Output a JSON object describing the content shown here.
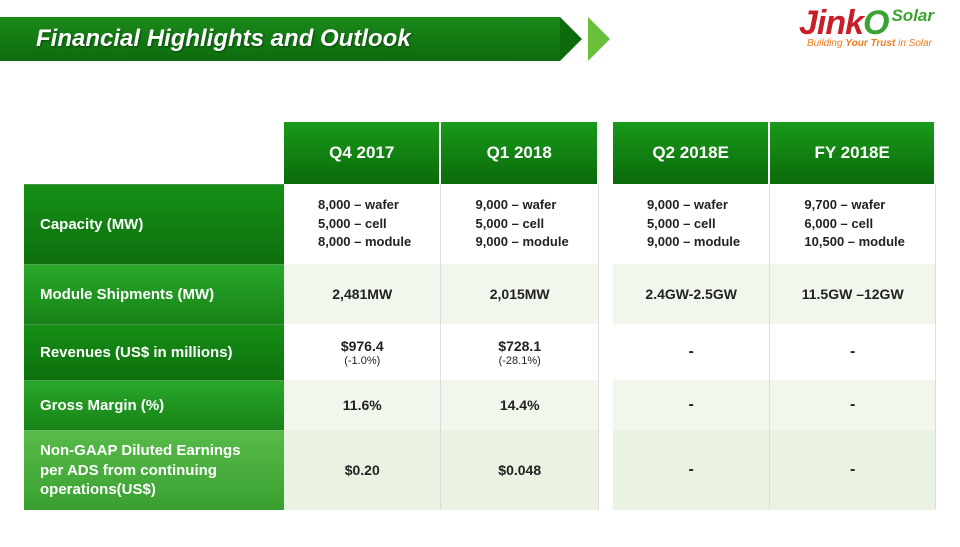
{
  "colors": {
    "brand_green_dark": "#0d6b0d",
    "brand_green_light": "#6abf3a",
    "jinko_red": "#c8202a",
    "jinko_o_green": "#3aa332",
    "tag_orange": "#e87b1e",
    "row_label_a": "#0d6f0d",
    "row_label_b": "#178317",
    "row_label_c": "#39a02f",
    "cell_bg_a": "#ffffff",
    "cell_bg_b": "#f2f7ee",
    "cell_bg_c": "#eaf3e2"
  },
  "header": {
    "title": "Financial Highlights and Outlook"
  },
  "logo": {
    "jink": "Jink",
    "o": "O",
    "solar": "Solar",
    "tag_pre": "Building ",
    "tag_bold": "Your Trust",
    "tag_post": " in Solar"
  },
  "table": {
    "columns": [
      "Q4 2017",
      "Q1 2018",
      "Q2 2018E",
      "FY 2018E"
    ],
    "rows": [
      {
        "key": "capacity",
        "label": "Capacity (MW)",
        "type": "capacity",
        "cells": [
          [
            "8,000 – wafer",
            "5,000 – cell",
            "8,000 – module"
          ],
          [
            "9,000 – wafer",
            "5,000 – cell",
            "9,000 – module"
          ],
          [
            "9,000 – wafer",
            "5,000 – cell",
            "9,000 – module"
          ],
          [
            "9,700 – wafer",
            "6,000 – cell",
            "10,500 – module"
          ]
        ]
      },
      {
        "key": "shipments",
        "label": "Module Shipments (MW)",
        "type": "plain",
        "cells": [
          "2,481MW",
          "2,015MW",
          "2.4GW-2.5GW",
          "11.5GW –12GW"
        ]
      },
      {
        "key": "revenues",
        "label": "Revenues (US$ in millions)",
        "type": "revenue",
        "cells": [
          {
            "main": "$976.4",
            "sub": "(-1.0%)"
          },
          {
            "main": "$728.1",
            "sub": "(-28.1%)"
          },
          {
            "main": "-",
            "sub": ""
          },
          {
            "main": "-",
            "sub": ""
          }
        ]
      },
      {
        "key": "grossmargin",
        "label": "Gross Margin (%)",
        "type": "plain",
        "cells": [
          "11.6%",
          "14.4%",
          "-",
          "-"
        ]
      },
      {
        "key": "eps",
        "label": "Non-GAAP Diluted Earnings per ADS from continuing operations(US$)",
        "type": "plain",
        "cells": [
          "$0.20",
          "$0.048",
          "-",
          "-"
        ]
      }
    ]
  }
}
